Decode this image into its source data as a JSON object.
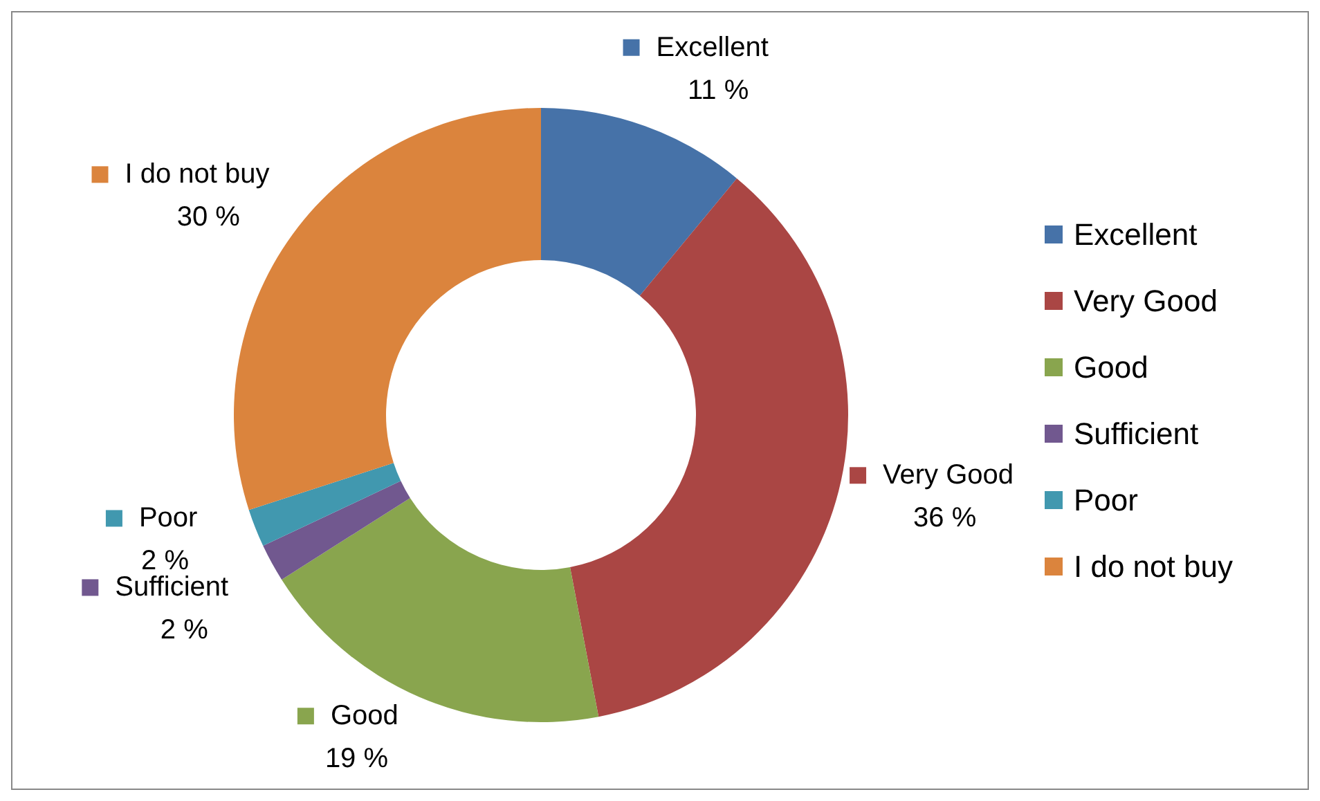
{
  "chart_data": {
    "type": "donut",
    "categories": [
      "Excellent",
      "Very Good",
      "Good",
      "Sufficient",
      "Poor",
      "I do not buy"
    ],
    "values": [
      11,
      36,
      19,
      2,
      2,
      30
    ],
    "colors": [
      "#4672a8",
      "#aa4644",
      "#89a54e",
      "#71588f",
      "#4198af",
      "#db843d"
    ],
    "value_labels": [
      "11 %",
      "36 %",
      "19 %",
      "2 %",
      "2 %",
      "30 %"
    ],
    "legend": "right"
  }
}
